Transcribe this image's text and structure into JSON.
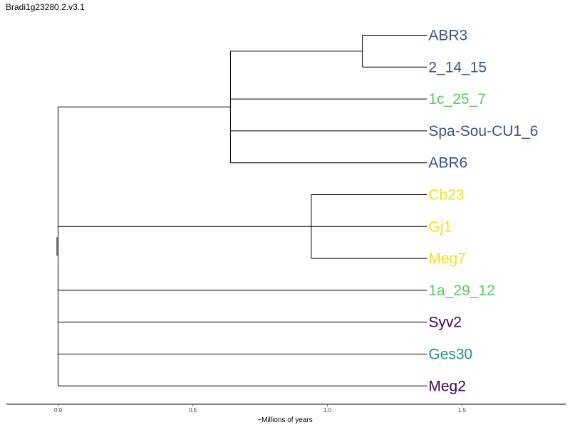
{
  "title": "Bradi1g23280.2.v3.1",
  "axis": {
    "label": "~Millions of years",
    "range": [
      -0.19,
      1.89
    ],
    "ticks": [
      {
        "value": 0.0,
        "label": "0.0"
      },
      {
        "value": 0.5,
        "label": "0.5"
      },
      {
        "value": 1.0,
        "label": "1.0"
      },
      {
        "value": 1.5,
        "label": "1.5"
      }
    ]
  },
  "tree": {
    "root_age": 0.0,
    "leaf_age": 1.37,
    "leaves": [
      {
        "name": "ABR3",
        "color": "#3b5488"
      },
      {
        "name": "2_14_15",
        "color": "#3b5488"
      },
      {
        "name": "1c_25_7",
        "color": "#5cc863"
      },
      {
        "name": "Spa-Sou-CU1_6",
        "color": "#3b5488"
      },
      {
        "name": "ABR6",
        "color": "#3b5488"
      },
      {
        "name": "Cb23",
        "color": "#f0e020"
      },
      {
        "name": "Gj1",
        "color": "#f0e020"
      },
      {
        "name": "Meg7",
        "color": "#f0e020"
      },
      {
        "name": "1a_29_12",
        "color": "#5cc863"
      },
      {
        "name": "Syv2",
        "color": "#440154"
      },
      {
        "name": "Ges30",
        "color": "#21908d"
      },
      {
        "name": "Meg2",
        "color": "#440154"
      }
    ],
    "clades": [
      {
        "id": "c1",
        "age": 1.13,
        "children": [
          "leaf:0",
          "leaf:1"
        ]
      },
      {
        "id": "c2",
        "age": 0.64,
        "children": [
          "clade:c1",
          "leaf:2",
          "leaf:3",
          "leaf:4"
        ]
      },
      {
        "id": "c3",
        "age": 0.94,
        "children": [
          "leaf:5",
          "leaf:6",
          "leaf:7"
        ]
      },
      {
        "id": "root",
        "age": 0.0,
        "children": [
          "clade:c2",
          "clade:c3",
          "leaf:8",
          "leaf:9",
          "leaf:10",
          "leaf:11"
        ]
      }
    ]
  }
}
